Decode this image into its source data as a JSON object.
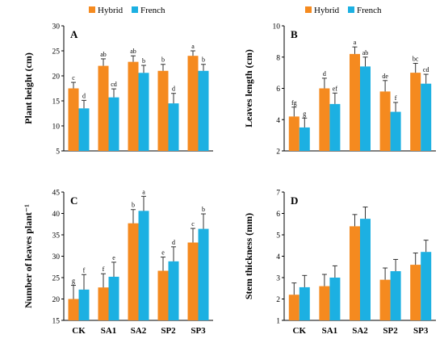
{
  "colors": {
    "hybrid": "#F58A1F",
    "french": "#1CB0E2"
  },
  "chart_data": [
    {
      "type": "bar",
      "panel_label": "A",
      "ylabel": "Plant height (cm)",
      "ylim": [
        5,
        30
      ],
      "yticks": [
        "5",
        "10",
        "15",
        "20",
        "25",
        "30"
      ],
      "categories": [
        "CK",
        "SA1",
        "SA2",
        "SP2",
        "SP3"
      ],
      "show_xticks": false,
      "legend": {
        "position": "top-center",
        "entries": [
          "Hybrid",
          "French"
        ]
      },
      "series": [
        {
          "name": "Hybrid",
          "values": [
            17.5,
            22.0,
            22.8,
            21.0,
            24.0
          ],
          "err": [
            1.2,
            1.4,
            1.2,
            1.3,
            1.0
          ],
          "letters": [
            "c",
            "ab",
            "ab",
            "b",
            "a"
          ]
        },
        {
          "name": "French",
          "values": [
            13.5,
            15.7,
            20.6,
            14.5,
            21.0
          ],
          "err": [
            1.6,
            1.7,
            1.5,
            2.0,
            1.3
          ],
          "letters": [
            "d",
            "cd",
            "b",
            "d",
            "b"
          ]
        }
      ]
    },
    {
      "type": "bar",
      "panel_label": "B",
      "ylabel": "Leaves length (cm)",
      "ylim": [
        2,
        10
      ],
      "yticks": [
        "2",
        "4",
        "6",
        "8",
        "10"
      ],
      "categories": [
        "CK",
        "SA1",
        "SA2",
        "SP2",
        "SP3"
      ],
      "show_xticks": false,
      "legend": {
        "position": "top-center",
        "entries": [
          "Hybrid",
          "French"
        ]
      },
      "series": [
        {
          "name": "Hybrid",
          "values": [
            4.2,
            6.0,
            8.2,
            5.8,
            7.0
          ],
          "err": [
            0.6,
            0.65,
            0.45,
            0.7,
            0.6
          ],
          "letters": [
            "fg",
            "d",
            "a",
            "de",
            "bc"
          ]
        },
        {
          "name": "French",
          "values": [
            3.5,
            5.0,
            7.4,
            4.5,
            6.3
          ],
          "err": [
            0.6,
            0.7,
            0.6,
            0.6,
            0.6
          ],
          "letters": [
            "g",
            "ef",
            "ab",
            "f",
            "cd"
          ]
        }
      ]
    },
    {
      "type": "bar",
      "panel_label": "C",
      "ylabel": "Number of leaves plant⁻¹",
      "ylim": [
        15,
        45
      ],
      "yticks": [
        "15",
        "20",
        "25",
        "30",
        "35",
        "40",
        "45"
      ],
      "categories": [
        "CK",
        "SA1",
        "SA2",
        "SP2",
        "SP3"
      ],
      "show_xticks": true,
      "series": [
        {
          "name": "Hybrid",
          "values": [
            20.0,
            22.7,
            37.7,
            26.6,
            33.2
          ],
          "err": [
            3.2,
            3.2,
            3.2,
            3.2,
            3.3
          ],
          "letters": [
            "g",
            "f",
            "b",
            "e",
            "c"
          ]
        },
        {
          "name": "French",
          "values": [
            22.2,
            25.2,
            40.6,
            28.8,
            36.4
          ],
          "err": [
            3.5,
            3.4,
            3.4,
            3.4,
            3.5
          ],
          "letters": [
            "f",
            "e",
            "a",
            "d",
            "b"
          ]
        }
      ]
    },
    {
      "type": "bar",
      "panel_label": "D",
      "ylabel": "Stem thickness (mm)",
      "ylim": [
        1,
        7
      ],
      "yticks": [
        "1",
        "2",
        "3",
        "4",
        "5",
        "6",
        "7"
      ],
      "categories": [
        "CK",
        "SA1",
        "SA2",
        "SP2",
        "SP3"
      ],
      "show_xticks": true,
      "series": [
        {
          "name": "Hybrid",
          "values": [
            2.2,
            2.6,
            5.4,
            2.9,
            3.6
          ],
          "err": [
            0.55,
            0.55,
            0.55,
            0.55,
            0.55
          ],
          "letters": [
            "",
            "",
            "",
            "",
            ""
          ]
        },
        {
          "name": "French",
          "values": [
            2.55,
            3.0,
            5.75,
            3.3,
            4.2
          ],
          "err": [
            0.55,
            0.55,
            0.55,
            0.55,
            0.55
          ],
          "letters": [
            "",
            "",
            "",
            "",
            ""
          ]
        }
      ]
    }
  ]
}
